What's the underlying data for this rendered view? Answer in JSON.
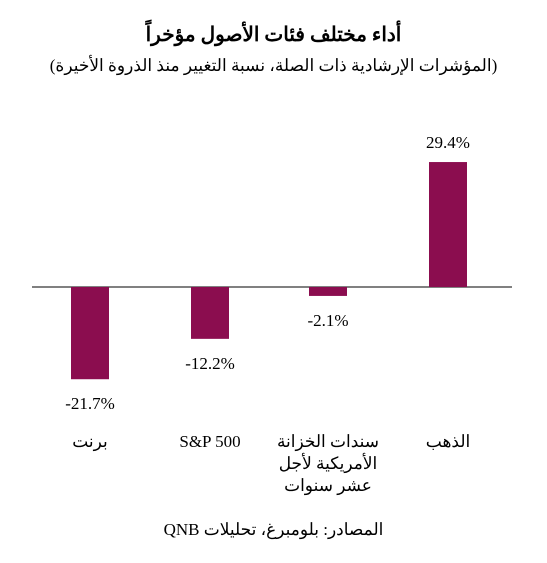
{
  "chart_data": {
    "type": "bar",
    "title": "أداء مختلف فئات الأصول مؤخراً",
    "subtitle": "(المؤشرات الإرشادية ذات الصلة، نسبة التغيير منذ الذروة الأخيرة)",
    "categories": [
      [
        "برنت"
      ],
      [
        "S&P 500"
      ],
      [
        "سندات الخزانة",
        "الأمريكية لأجل",
        "عشر سنوات"
      ],
      [
        "الذهب"
      ]
    ],
    "values": [
      -21.7,
      -12.2,
      -2.1,
      29.4
    ],
    "value_labels": [
      "-21.7%",
      "-12.2%",
      "-2.1%",
      "29.4%"
    ],
    "bar_color": "#8b0d4f",
    "grid": false,
    "legend": "none"
  },
  "source": "المصادر: بلومبرغ، تحليلات QNB"
}
